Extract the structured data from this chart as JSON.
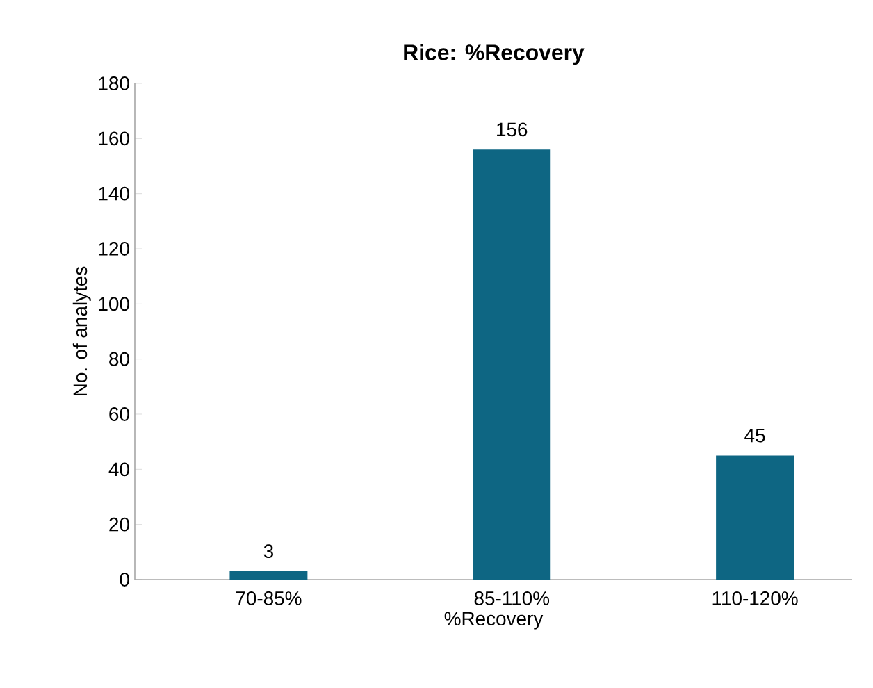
{
  "chart_data": {
    "type": "bar",
    "title": "Rice: %Recovery",
    "xlabel": "%Recovery",
    "ylabel": "No. of analytes",
    "categories": [
      "70-85%",
      "85-110%",
      "110-120%"
    ],
    "values": [
      3,
      156,
      45
    ],
    "color": "#0e6683",
    "ylim": [
      0,
      180
    ],
    "yticks": [
      0,
      20,
      40,
      60,
      80,
      100,
      120,
      140,
      160,
      180
    ],
    "grid": false,
    "data_labels": true
  }
}
